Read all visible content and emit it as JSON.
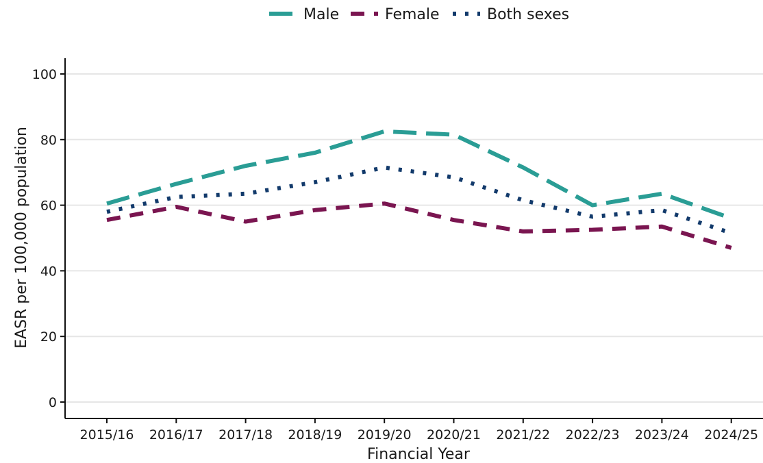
{
  "chart_data": {
    "type": "line",
    "xlabel": "Financial Year",
    "ylabel": "EASR per 100,000 population",
    "ylim": [
      0,
      100
    ],
    "yticks": [
      0,
      20,
      40,
      60,
      80,
      100
    ],
    "grid": "horizontal",
    "legend_position": "top",
    "categories": [
      "2015/16",
      "2016/17",
      "2017/18",
      "2018/19",
      "2019/20",
      "2020/21",
      "2021/22",
      "2022/23",
      "2023/24",
      "2024/25"
    ],
    "series": [
      {
        "name": "Male",
        "color": "#2a9d95",
        "style": "long-dash",
        "values": [
          60.5,
          66.5,
          72,
          76,
          82.5,
          81.5,
          71.5,
          60,
          63.5,
          56
        ]
      },
      {
        "name": "Female",
        "color": "#7a1550",
        "style": "dash",
        "values": [
          55.5,
          59.5,
          55,
          58.5,
          60.5,
          55.5,
          52,
          52.5,
          53.5,
          47
        ]
      },
      {
        "name": "Both sexes",
        "color": "#123a6b",
        "style": "dot",
        "values": [
          58,
          62.5,
          63.5,
          67,
          71.5,
          68.5,
          61.5,
          56.5,
          58.5,
          51.5
        ]
      }
    ]
  }
}
